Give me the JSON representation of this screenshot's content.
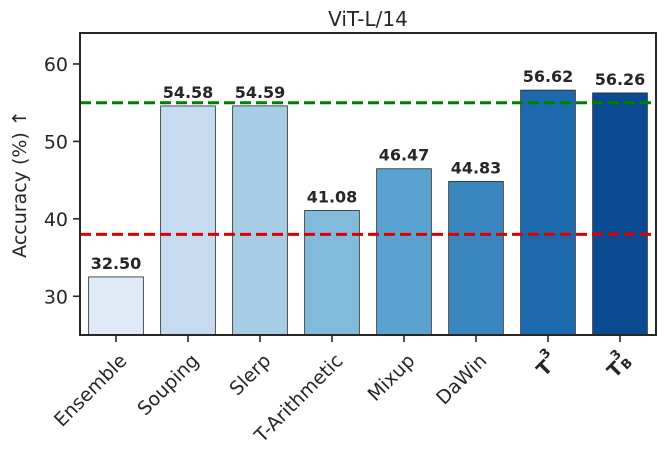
{
  "chart_data": {
    "type": "bar",
    "title": "ViT-L/14",
    "xlabel": "",
    "ylabel": "Accuracy (%) ↑",
    "ylim": [
      25,
      64
    ],
    "yticks": [
      30,
      40,
      50,
      60
    ],
    "grid": false,
    "categories": [
      "Ensemble",
      "Souping",
      "Slerp",
      "T-Arithmetic",
      "Mixup",
      "DaWin",
      "T3",
      "T3B"
    ],
    "category_labels": [
      {
        "main": "Ensemble",
        "sup": "",
        "sub": "",
        "bold": false
      },
      {
        "main": "Souping",
        "sup": "",
        "sub": "",
        "bold": false
      },
      {
        "main": "Slerp",
        "sup": "",
        "sub": "",
        "bold": false
      },
      {
        "main": "T-Arithmetic",
        "sup": "",
        "sub": "",
        "bold": false
      },
      {
        "main": "Mixup",
        "sup": "",
        "sub": "",
        "bold": false
      },
      {
        "main": "DaWin",
        "sup": "",
        "sub": "",
        "bold": false
      },
      {
        "main": "T",
        "sup": "3",
        "sub": "",
        "bold": true
      },
      {
        "main": "T",
        "sup": "3",
        "sub": "B",
        "bold": true
      }
    ],
    "values": [
      32.5,
      54.58,
      54.59,
      41.08,
      46.47,
      44.83,
      56.62,
      56.26
    ],
    "value_labels": [
      "32.50",
      "54.58",
      "54.59",
      "41.08",
      "46.47",
      "44.83",
      "56.62",
      "56.26"
    ],
    "bar_colors": [
      "#deebf7",
      "#c6dbef",
      "#a6cde3",
      "#82badb",
      "#5aa2cf",
      "#3a87c0",
      "#1c69ae",
      "#0a4a90"
    ],
    "reference_lines": [
      {
        "value": 55.0,
        "color": "#008000",
        "style": "dashed"
      },
      {
        "value": 38.0,
        "color": "#dd0000",
        "style": "dashed"
      }
    ]
  }
}
